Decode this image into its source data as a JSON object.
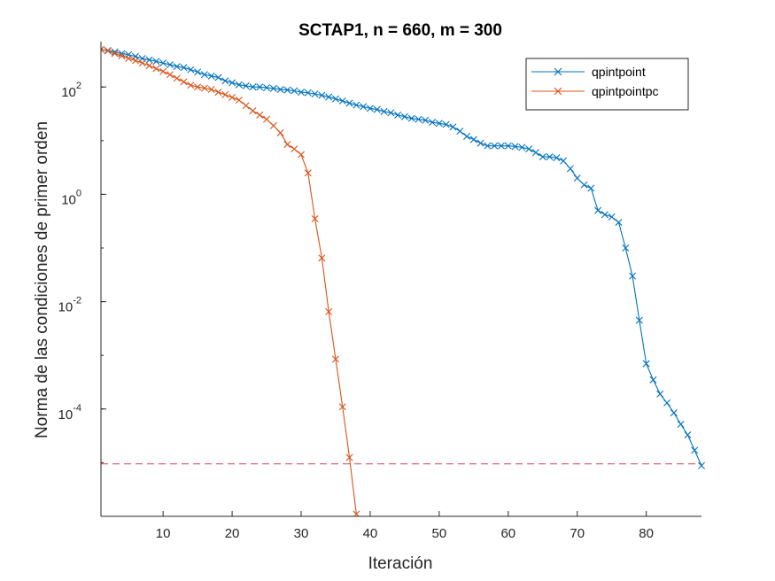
{
  "chart_data": {
    "type": "line",
    "title": "SCTAP1, n = 660, m = 300",
    "xlabel": "Iteración",
    "ylabel": "Norma de las condiciones de primer orden",
    "yscale": "log",
    "xlim": [
      1,
      88
    ],
    "ylim": [
      1e-06,
      700
    ],
    "xticks": [
      10,
      20,
      30,
      40,
      50,
      60,
      70,
      80
    ],
    "yticks": [
      {
        "base": "10",
        "exp": "2",
        "value": 100
      },
      {
        "base": "10",
        "exp": "0",
        "value": 1
      },
      {
        "base": "10",
        "exp": "-2",
        "value": 0.01
      },
      {
        "base": "10",
        "exp": "-4",
        "value": 0.0001
      }
    ],
    "legend_position": "top-right",
    "grid": false,
    "threshold": {
      "value": 9.5e-06,
      "style": "dashed",
      "color": "#d9444f"
    },
    "series": [
      {
        "name": "qpintpoint",
        "color": "#0072bd",
        "marker": "x",
        "x": [
          1,
          2,
          3,
          4,
          5,
          6,
          7,
          8,
          9,
          10,
          11,
          12,
          13,
          14,
          15,
          16,
          17,
          18,
          19,
          20,
          21,
          22,
          23,
          24,
          25,
          26,
          27,
          28,
          29,
          30,
          31,
          32,
          33,
          34,
          35,
          36,
          37,
          38,
          39,
          40,
          41,
          42,
          43,
          44,
          45,
          46,
          47,
          48,
          49,
          50,
          51,
          52,
          53,
          54,
          55,
          56,
          57,
          58,
          59,
          60,
          61,
          62,
          63,
          64,
          65,
          66,
          67,
          68,
          69,
          70,
          71,
          72,
          73,
          74,
          75,
          76,
          77,
          78,
          79,
          80,
          81,
          82,
          83,
          84,
          85,
          86,
          87,
          88
        ],
        "y": [
          500,
          480,
          450,
          420,
          400,
          370,
          340,
          320,
          300,
          280,
          260,
          240,
          230,
          210,
          190,
          170,
          160,
          150,
          130,
          120,
          110,
          105,
          100,
          100,
          97,
          94,
          90,
          88,
          85,
          80,
          78,
          74,
          70,
          65,
          60,
          55,
          50,
          46,
          43,
          40,
          38,
          35,
          33,
          30,
          28,
          26,
          25,
          24,
          22,
          21,
          20,
          18,
          15,
          12,
          10.5,
          9,
          8,
          8,
          8,
          8,
          7.8,
          7.5,
          7,
          6,
          5,
          5,
          4.8,
          4.2,
          3,
          2,
          1.5,
          1.3,
          0.5,
          0.42,
          0.38,
          0.3,
          0.1,
          0.03,
          0.0045,
          0.0007,
          0.00035,
          0.00019,
          0.00013,
          8.5e-05,
          5.2e-05,
          3.3e-05,
          1.7e-05,
          8.8e-06
        ]
      },
      {
        "name": "qpintpointpc",
        "color": "#d95319",
        "marker": "x",
        "x": [
          1,
          2,
          3,
          4,
          5,
          6,
          7,
          8,
          9,
          10,
          11,
          12,
          13,
          14,
          15,
          16,
          17,
          18,
          19,
          20,
          21,
          22,
          23,
          24,
          25,
          26,
          27,
          28,
          29,
          30,
          31,
          32,
          33,
          34,
          35,
          36,
          37,
          38
        ],
        "y": [
          500,
          470,
          420,
          380,
          340,
          310,
          280,
          250,
          220,
          195,
          170,
          145,
          125,
          108,
          100,
          95,
          90,
          80,
          72,
          64,
          57,
          45,
          36,
          30,
          25,
          19,
          14,
          8.5,
          7,
          5.5,
          2.5,
          0.35,
          0.065,
          0.0065,
          0.00085,
          0.00011,
          1.25e-05,
          1.1e-06
        ]
      }
    ]
  }
}
